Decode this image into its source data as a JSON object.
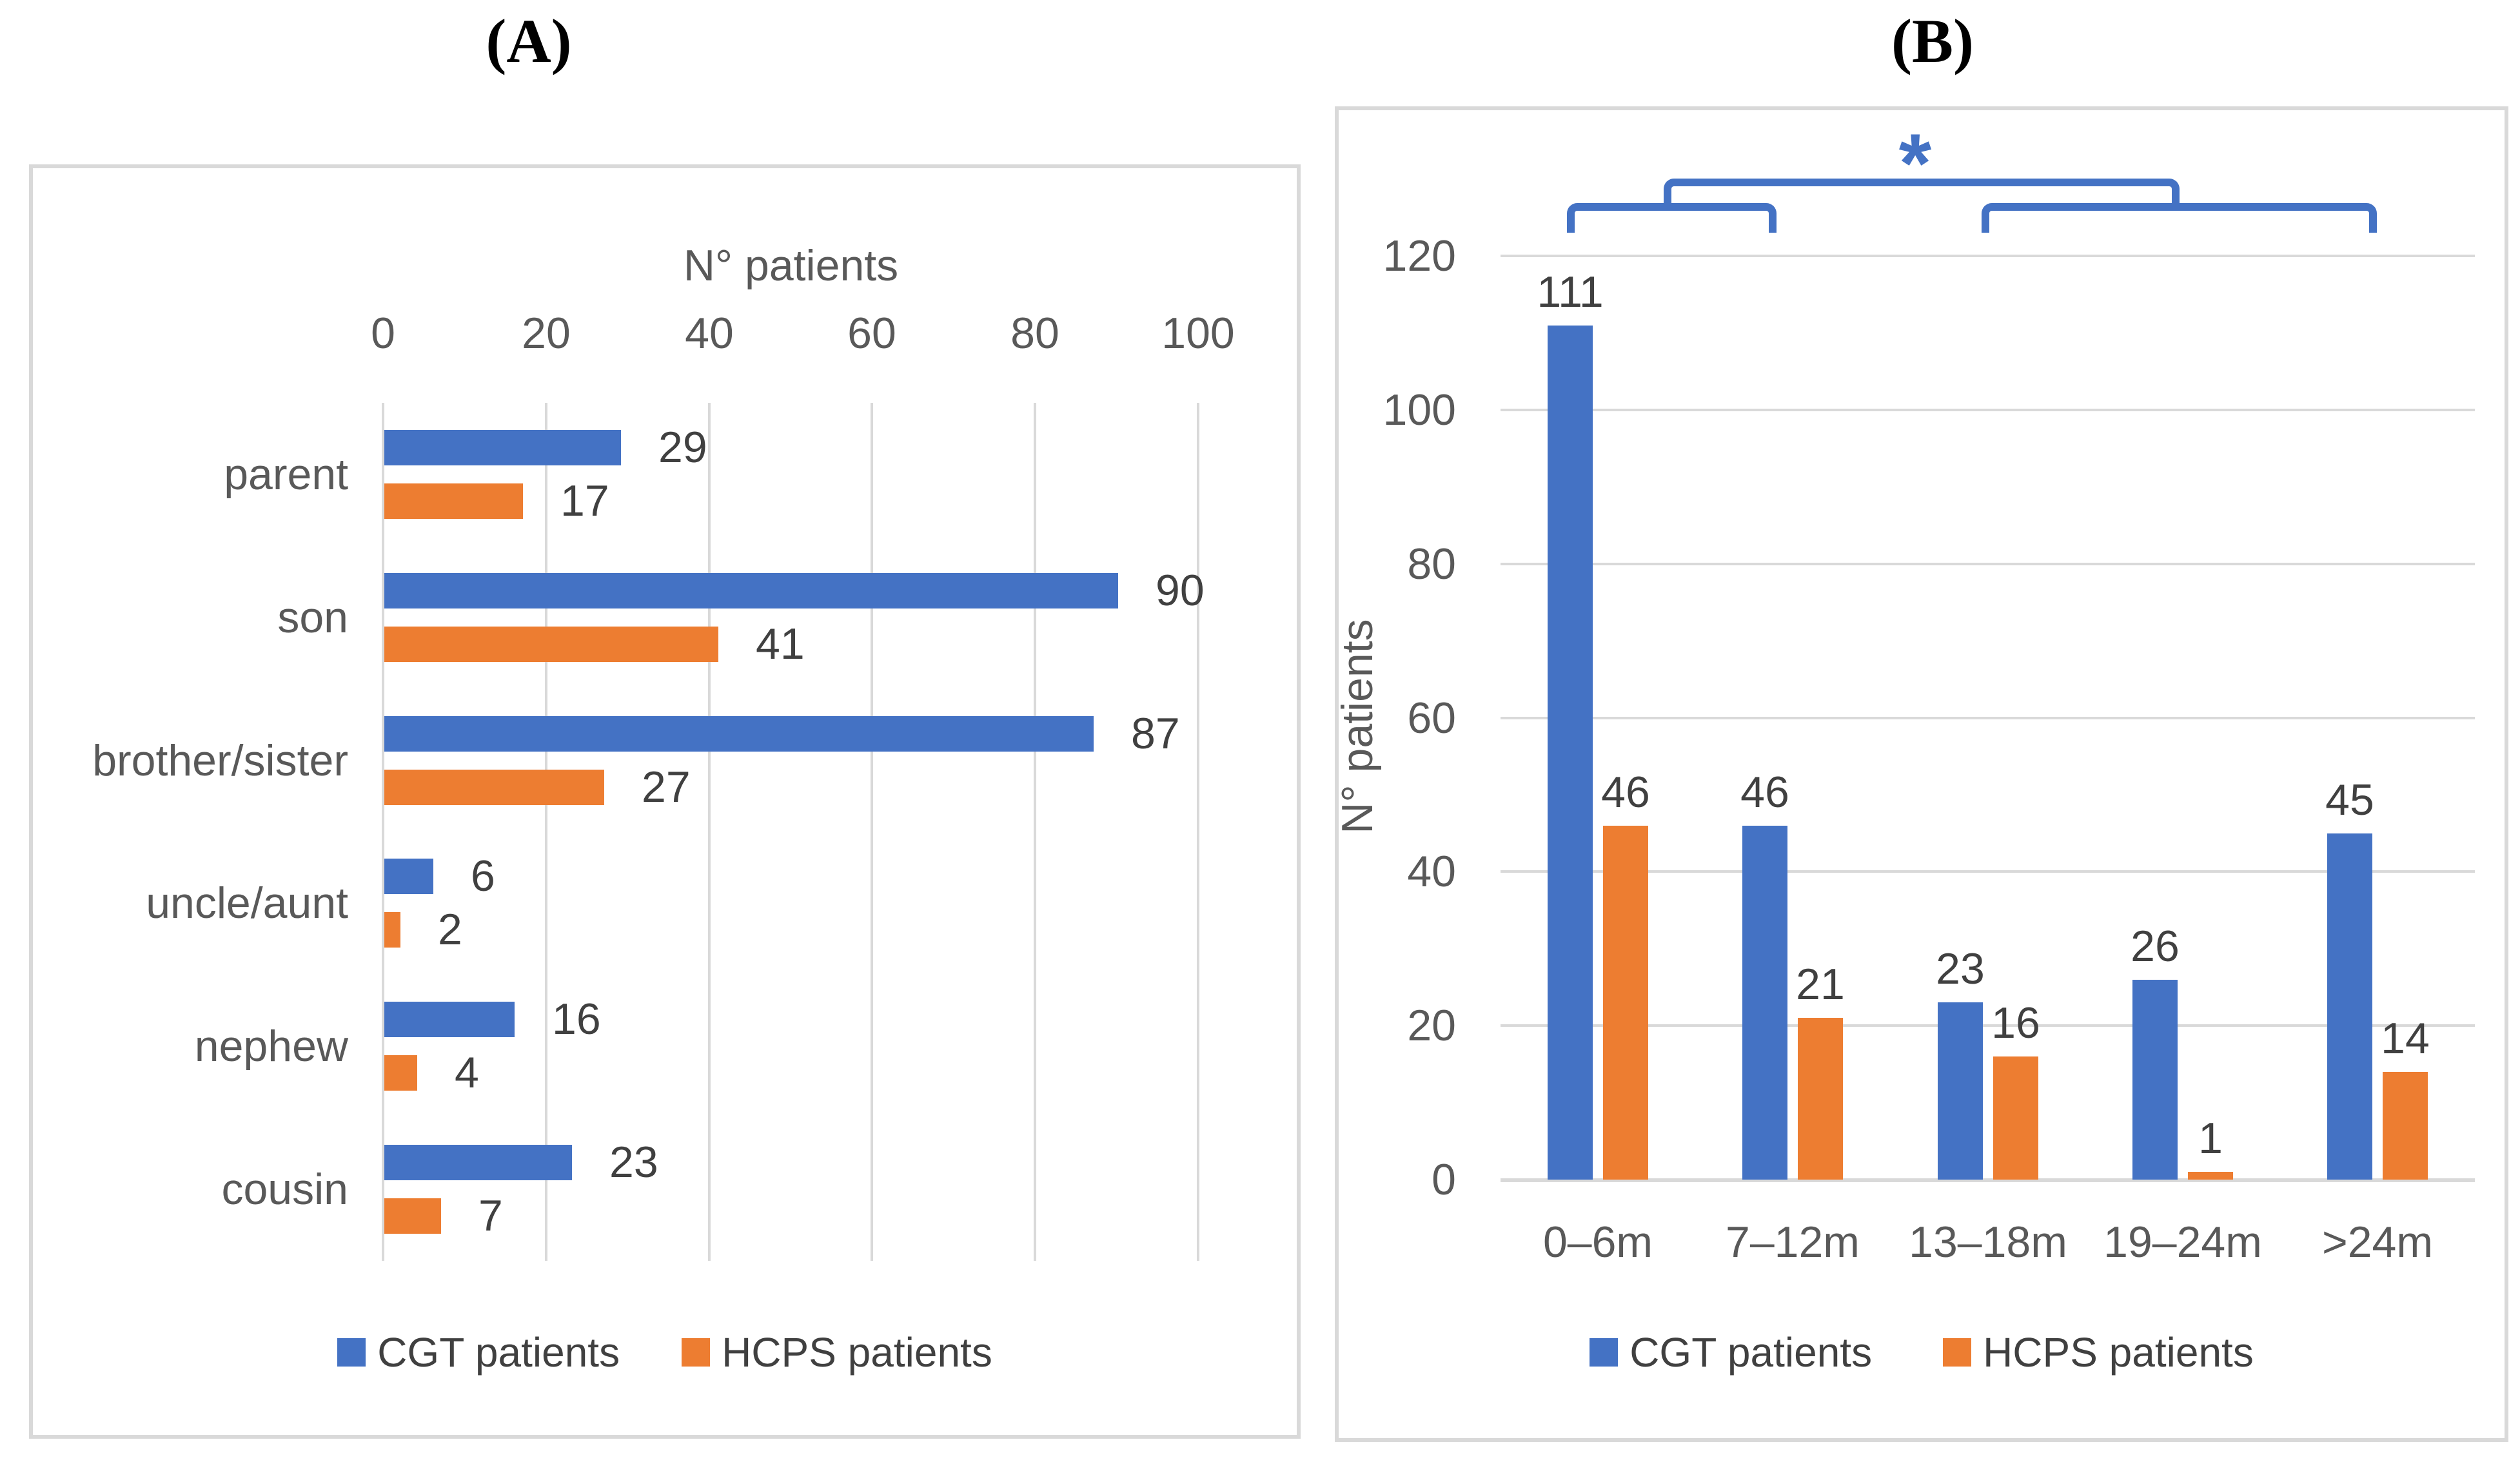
{
  "figure": {
    "panel_a_title": "(A)",
    "panel_b_title": "(B)"
  },
  "colors": {
    "cgt_blue": "#4472C4",
    "hcps_orange": "#ED7D31",
    "gridline_gray": "#D9D9D9",
    "axis_text_gray": "#595959",
    "label_dark_gray": "#404040",
    "annotation_blue": "#4472C4"
  },
  "legend": {
    "items": [
      {
        "label": "CGT patients",
        "color": "#4472C4"
      },
      {
        "label": "HCPS patients",
        "color": "#ED7D31"
      }
    ]
  },
  "chart_data": [
    {
      "id": "A",
      "type": "bar",
      "orientation": "horizontal",
      "title": "(A)",
      "axis_title": "N° patients",
      "categories": [
        "parent",
        "son",
        "brother/sister",
        "uncle/aunt",
        "nephew",
        "cousin"
      ],
      "series": [
        {
          "name": "CGT patients",
          "color": "#4472C4",
          "values": [
            29,
            90,
            87,
            6,
            16,
            23
          ]
        },
        {
          "name": "HCPS patients",
          "color": "#ED7D31",
          "values": [
            17,
            41,
            27,
            2,
            4,
            7
          ]
        }
      ],
      "xlim": [
        0,
        100
      ],
      "xticks": [
        0,
        20,
        40,
        60,
        80,
        100
      ],
      "grid": true,
      "data_labels": true,
      "legend_position": "bottom"
    },
    {
      "id": "B",
      "type": "bar",
      "orientation": "vertical",
      "title": "(B)",
      "ylabel": "N° patients",
      "categories": [
        "0–6m",
        "7–12m",
        "13–18m",
        "19–24m",
        ">24m"
      ],
      "series": [
        {
          "name": "CGT patients",
          "color": "#4472C4",
          "values": [
            111,
            46,
            23,
            26,
            45
          ]
        },
        {
          "name": "HCPS patients",
          "color": "#ED7D31",
          "values": [
            46,
            21,
            16,
            1,
            14
          ]
        }
      ],
      "ylim": [
        0,
        120
      ],
      "yticks": [
        0,
        20,
        40,
        60,
        80,
        100,
        120
      ],
      "grid": true,
      "data_labels": true,
      "legend_position": "bottom",
      "annotation": {
        "type": "significance-bracket",
        "symbol": "*",
        "color": "#4472C4",
        "compares": [
          [
            "0–6m",
            "7–12m"
          ],
          [
            "13–18m",
            "19–24m",
            ">24m"
          ]
        ]
      }
    }
  ]
}
